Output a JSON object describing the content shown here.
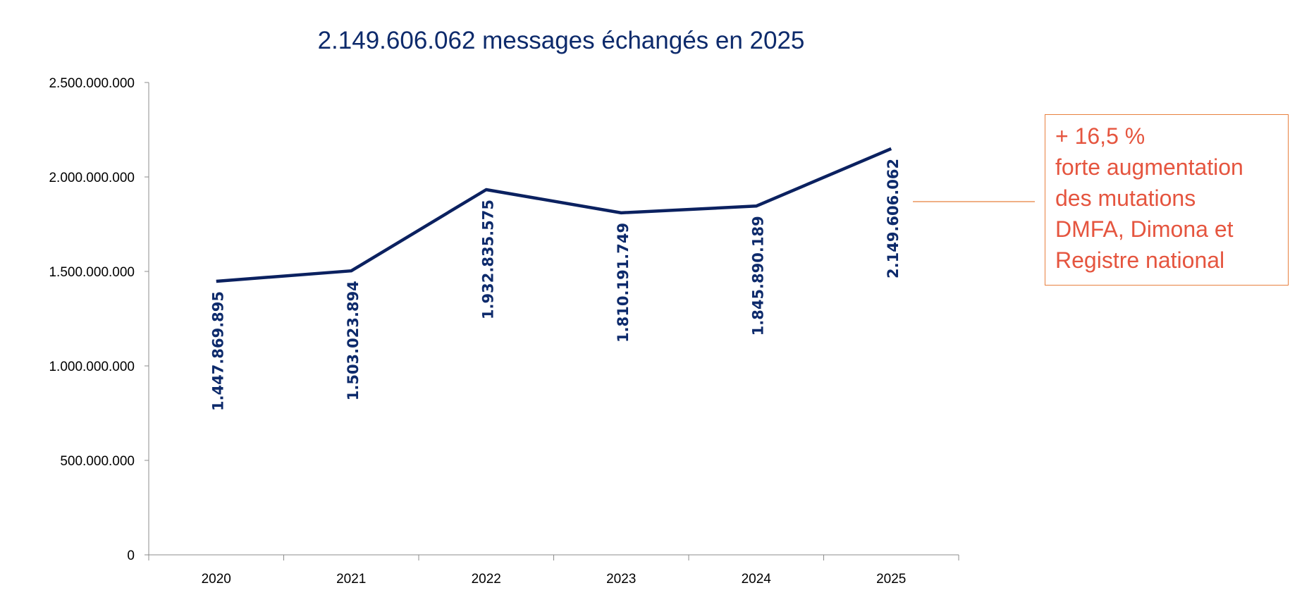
{
  "chart_data": {
    "type": "line",
    "title": "2.149.606.062 messages échangés en 2025",
    "xlabel": "",
    "ylabel": "",
    "categories": [
      "2020",
      "2021",
      "2022",
      "2023",
      "2024",
      "2025"
    ],
    "values": [
      1447869895,
      1503023894,
      1932835575,
      1810191749,
      1845890189,
      2149606062
    ],
    "data_labels": [
      "1.447.869.895",
      "1.503.023.894",
      "1.932.835.575",
      "1.810.191.749",
      "1.845.890.189",
      "2.149.606.062"
    ],
    "ylim": [
      0,
      2500000000
    ],
    "yticks": [
      0,
      500000000,
      1000000000,
      1500000000,
      2000000000,
      2500000000
    ],
    "ytick_labels": [
      "0",
      "500.000.000",
      "1.000.000.000",
      "1.500.000.000",
      "2.000.000.000",
      "2.500.000.000"
    ],
    "grid": false,
    "legend": "none",
    "colors": {
      "line": "#0b2160",
      "labels": "#0d2a6b",
      "callout_text": "#e5553f",
      "callout_border": "#e8803f"
    },
    "annotation": {
      "lines": [
        "+ 16,5 %",
        "forte augmentation",
        "des mutations",
        "DMFA, Dimona et",
        "Registre national"
      ]
    }
  }
}
